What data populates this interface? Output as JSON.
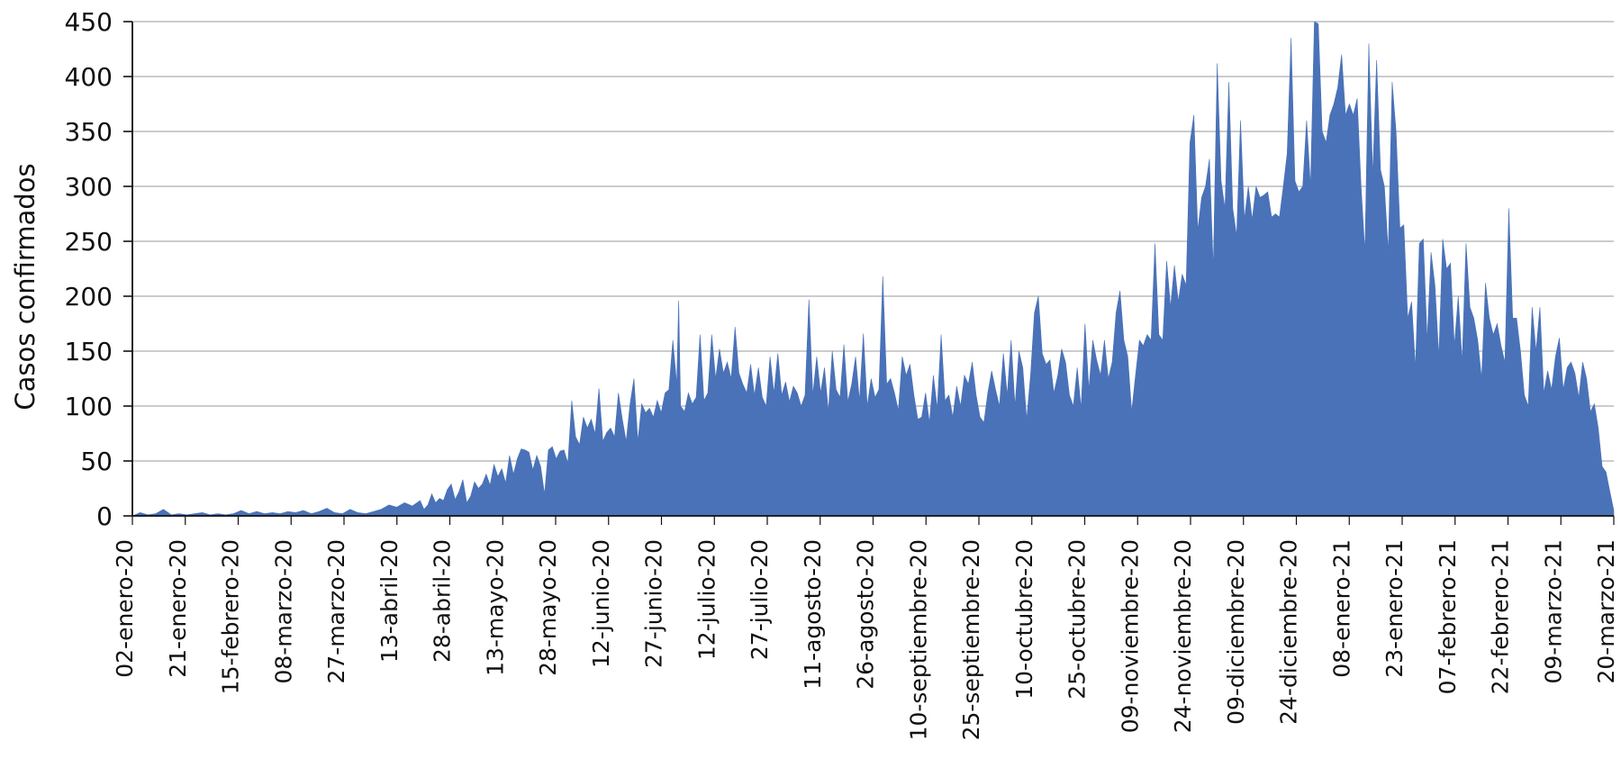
{
  "chart_data": {
    "type": "area",
    "ylabel": "Casos confirmados",
    "xlabel": "",
    "ylim": [
      0,
      450
    ],
    "yticks": [
      0,
      50,
      100,
      150,
      200,
      250,
      300,
      350,
      400,
      450
    ],
    "grid": true,
    "legend": "none",
    "colors": {
      "fill": "#4a72b8",
      "grid": "#bcbcbc",
      "axis": "#111111"
    },
    "x_tick_labels": [
      "02-enero-20",
      "21-enero-20",
      "15-febrero-20",
      "08-marzo-20",
      "27-marzo-20",
      "13-abril-20",
      "28-abril-20",
      "13-mayo-20",
      "28-mayo-20",
      "12-junio-20",
      "27-junio-20",
      "12-julio-20",
      "27-julio-20",
      "11-agosto-20",
      "26-agosto-20",
      "10-septiembre-20",
      "25-septiembre-20",
      "10-octubre-20",
      "25-octubre-20",
      "09-noviembre-20",
      "24-noviembre-20",
      "09-diciembre-20",
      "24-diciembre-20",
      "08-enero-21",
      "23-enero-21",
      "07-febrero-21",
      "22-febrero-21",
      "09-marzo-21",
      "20-marzo-21"
    ],
    "points": [
      [
        0,
        0
      ],
      [
        4,
        3
      ],
      [
        8,
        1
      ],
      [
        12,
        2
      ],
      [
        16,
        6
      ],
      [
        20,
        1
      ],
      [
        24,
        2
      ],
      [
        28,
        1
      ],
      [
        32,
        2
      ],
      [
        36,
        3
      ],
      [
        40,
        1
      ],
      [
        44,
        2
      ],
      [
        48,
        1
      ],
      [
        52,
        2
      ],
      [
        56,
        5
      ],
      [
        60,
        2
      ],
      [
        64,
        4
      ],
      [
        68,
        2
      ],
      [
        72,
        3
      ],
      [
        76,
        2
      ],
      [
        80,
        4
      ],
      [
        84,
        3
      ],
      [
        88,
        5
      ],
      [
        92,
        2
      ],
      [
        96,
        4
      ],
      [
        100,
        7
      ],
      [
        104,
        3
      ],
      [
        108,
        2
      ],
      [
        112,
        6
      ],
      [
        116,
        3
      ],
      [
        120,
        2
      ],
      [
        124,
        4
      ],
      [
        128,
        6
      ],
      [
        132,
        10
      ],
      [
        136,
        8
      ],
      [
        140,
        12
      ],
      [
        144,
        9
      ],
      [
        148,
        14
      ],
      [
        150,
        6
      ],
      [
        152,
        10
      ],
      [
        154,
        20
      ],
      [
        156,
        12
      ],
      [
        158,
        16
      ],
      [
        160,
        14
      ],
      [
        162,
        24
      ],
      [
        164,
        29
      ],
      [
        166,
        15
      ],
      [
        168,
        22
      ],
      [
        170,
        33
      ],
      [
        172,
        12
      ],
      [
        174,
        18
      ],
      [
        176,
        31
      ],
      [
        178,
        25
      ],
      [
        180,
        29
      ],
      [
        182,
        38
      ],
      [
        184,
        28
      ],
      [
        186,
        47
      ],
      [
        188,
        36
      ],
      [
        190,
        43
      ],
      [
        192,
        30
      ],
      [
        194,
        55
      ],
      [
        196,
        38
      ],
      [
        198,
        52
      ],
      [
        200,
        61
      ],
      [
        202,
        60
      ],
      [
        204,
        58
      ],
      [
        206,
        42
      ],
      [
        208,
        55
      ],
      [
        210,
        45
      ],
      [
        212,
        20
      ],
      [
        214,
        60
      ],
      [
        216,
        63
      ],
      [
        218,
        52
      ],
      [
        220,
        59
      ],
      [
        222,
        60
      ],
      [
        224,
        48
      ],
      [
        226,
        105
      ],
      [
        228,
        72
      ],
      [
        230,
        65
      ],
      [
        232,
        90
      ],
      [
        234,
        80
      ],
      [
        236,
        88
      ],
      [
        238,
        75
      ],
      [
        240,
        116
      ],
      [
        242,
        68
      ],
      [
        244,
        76
      ],
      [
        246,
        80
      ],
      [
        248,
        72
      ],
      [
        250,
        112
      ],
      [
        252,
        88
      ],
      [
        254,
        68
      ],
      [
        256,
        102
      ],
      [
        258,
        125
      ],
      [
        260,
        68
      ],
      [
        262,
        102
      ],
      [
        264,
        94
      ],
      [
        266,
        98
      ],
      [
        268,
        90
      ],
      [
        270,
        105
      ],
      [
        272,
        94
      ],
      [
        274,
        112
      ],
      [
        276,
        115
      ],
      [
        278,
        160
      ],
      [
        280,
        120
      ],
      [
        281,
        196
      ],
      [
        282,
        100
      ],
      [
        284,
        95
      ],
      [
        286,
        112
      ],
      [
        288,
        102
      ],
      [
        290,
        108
      ],
      [
        292,
        165
      ],
      [
        294,
        105
      ],
      [
        296,
        112
      ],
      [
        298,
        165
      ],
      [
        300,
        125
      ],
      [
        302,
        152
      ],
      [
        304,
        130
      ],
      [
        306,
        140
      ],
      [
        308,
        125
      ],
      [
        310,
        172
      ],
      [
        312,
        130
      ],
      [
        314,
        120
      ],
      [
        316,
        112
      ],
      [
        318,
        138
      ],
      [
        320,
        110
      ],
      [
        322,
        135
      ],
      [
        324,
        108
      ],
      [
        326,
        100
      ],
      [
        328,
        145
      ],
      [
        330,
        112
      ],
      [
        332,
        148
      ],
      [
        334,
        110
      ],
      [
        336,
        122
      ],
      [
        338,
        104
      ],
      [
        340,
        118
      ],
      [
        342,
        112
      ],
      [
        344,
        100
      ],
      [
        346,
        110
      ],
      [
        348,
        197
      ],
      [
        350,
        110
      ],
      [
        352,
        145
      ],
      [
        354,
        112
      ],
      [
        356,
        135
      ],
      [
        358,
        95
      ],
      [
        360,
        150
      ],
      [
        362,
        115
      ],
      [
        364,
        108
      ],
      [
        366,
        156
      ],
      [
        368,
        104
      ],
      [
        370,
        120
      ],
      [
        372,
        145
      ],
      [
        374,
        105
      ],
      [
        376,
        166
      ],
      [
        378,
        100
      ],
      [
        380,
        125
      ],
      [
        382,
        108
      ],
      [
        384,
        115
      ],
      [
        386,
        218
      ],
      [
        388,
        120
      ],
      [
        390,
        125
      ],
      [
        392,
        112
      ],
      [
        394,
        96
      ],
      [
        396,
        145
      ],
      [
        398,
        128
      ],
      [
        400,
        138
      ],
      [
        402,
        110
      ],
      [
        404,
        88
      ],
      [
        406,
        90
      ],
      [
        408,
        112
      ],
      [
        410,
        85
      ],
      [
        412,
        128
      ],
      [
        414,
        98
      ],
      [
        416,
        165
      ],
      [
        418,
        105
      ],
      [
        420,
        110
      ],
      [
        422,
        90
      ],
      [
        424,
        118
      ],
      [
        426,
        100
      ],
      [
        428,
        128
      ],
      [
        430,
        120
      ],
      [
        432,
        140
      ],
      [
        434,
        110
      ],
      [
        436,
        90
      ],
      [
        438,
        85
      ],
      [
        440,
        112
      ],
      [
        442,
        132
      ],
      [
        444,
        115
      ],
      [
        446,
        100
      ],
      [
        448,
        148
      ],
      [
        450,
        110
      ],
      [
        452,
        160
      ],
      [
        454,
        100
      ],
      [
        456,
        150
      ],
      [
        458,
        135
      ],
      [
        460,
        88
      ],
      [
        462,
        128
      ],
      [
        464,
        185
      ],
      [
        466,
        200
      ],
      [
        468,
        148
      ],
      [
        470,
        138
      ],
      [
        472,
        142
      ],
      [
        474,
        112
      ],
      [
        476,
        128
      ],
      [
        478,
        152
      ],
      [
        480,
        140
      ],
      [
        482,
        110
      ],
      [
        484,
        100
      ],
      [
        486,
        135
      ],
      [
        488,
        98
      ],
      [
        490,
        175
      ],
      [
        492,
        115
      ],
      [
        494,
        160
      ],
      [
        496,
        142
      ],
      [
        498,
        128
      ],
      [
        500,
        160
      ],
      [
        502,
        125
      ],
      [
        504,
        140
      ],
      [
        506,
        185
      ],
      [
        508,
        205
      ],
      [
        510,
        160
      ],
      [
        512,
        145
      ],
      [
        514,
        95
      ],
      [
        516,
        128
      ],
      [
        518,
        160
      ],
      [
        520,
        155
      ],
      [
        522,
        165
      ],
      [
        524,
        160
      ],
      [
        526,
        248
      ],
      [
        528,
        165
      ],
      [
        530,
        160
      ],
      [
        532,
        232
      ],
      [
        534,
        190
      ],
      [
        536,
        228
      ],
      [
        538,
        195
      ],
      [
        540,
        220
      ],
      [
        542,
        210
      ],
      [
        544,
        340
      ],
      [
        546,
        365
      ],
      [
        548,
        260
      ],
      [
        550,
        290
      ],
      [
        552,
        300
      ],
      [
        554,
        325
      ],
      [
        556,
        225
      ],
      [
        558,
        412
      ],
      [
        560,
        305
      ],
      [
        562,
        280
      ],
      [
        564,
        395
      ],
      [
        566,
        280
      ],
      [
        568,
        255
      ],
      [
        570,
        360
      ],
      [
        572,
        270
      ],
      [
        574,
        300
      ],
      [
        576,
        270
      ],
      [
        578,
        300
      ],
      [
        580,
        290
      ],
      [
        582,
        292
      ],
      [
        584,
        295
      ],
      [
        586,
        272
      ],
      [
        588,
        275
      ],
      [
        590,
        272
      ],
      [
        592,
        300
      ],
      [
        594,
        330
      ],
      [
        596,
        435
      ],
      [
        598,
        305
      ],
      [
        600,
        295
      ],
      [
        602,
        300
      ],
      [
        604,
        360
      ],
      [
        606,
        300
      ],
      [
        608,
        450
      ],
      [
        610,
        448
      ],
      [
        612,
        350
      ],
      [
        614,
        340
      ],
      [
        616,
        365
      ],
      [
        618,
        375
      ],
      [
        620,
        390
      ],
      [
        622,
        420
      ],
      [
        624,
        365
      ],
      [
        626,
        375
      ],
      [
        628,
        365
      ],
      [
        630,
        380
      ],
      [
        632,
        300
      ],
      [
        634,
        240
      ],
      [
        636,
        430
      ],
      [
        638,
        310
      ],
      [
        640,
        415
      ],
      [
        642,
        315
      ],
      [
        644,
        300
      ],
      [
        646,
        240
      ],
      [
        648,
        395
      ],
      [
        650,
        350
      ],
      [
        652,
        262
      ],
      [
        654,
        265
      ],
      [
        656,
        180
      ],
      [
        658,
        195
      ],
      [
        660,
        135
      ],
      [
        662,
        248
      ],
      [
        664,
        252
      ],
      [
        666,
        160
      ],
      [
        668,
        240
      ],
      [
        670,
        210
      ],
      [
        672,
        145
      ],
      [
        674,
        252
      ],
      [
        676,
        225
      ],
      [
        678,
        230
      ],
      [
        680,
        155
      ],
      [
        682,
        200
      ],
      [
        684,
        140
      ],
      [
        686,
        248
      ],
      [
        688,
        190
      ],
      [
        690,
        180
      ],
      [
        692,
        160
      ],
      [
        694,
        125
      ],
      [
        696,
        212
      ],
      [
        698,
        180
      ],
      [
        700,
        165
      ],
      [
        702,
        175
      ],
      [
        704,
        155
      ],
      [
        706,
        140
      ],
      [
        708,
        280
      ],
      [
        710,
        180
      ],
      [
        712,
        180
      ],
      [
        714,
        150
      ],
      [
        716,
        110
      ],
      [
        718,
        100
      ],
      [
        720,
        190
      ],
      [
        722,
        150
      ],
      [
        724,
        190
      ],
      [
        726,
        112
      ],
      [
        728,
        132
      ],
      [
        730,
        115
      ],
      [
        732,
        145
      ],
      [
        734,
        162
      ],
      [
        736,
        115
      ],
      [
        738,
        135
      ],
      [
        740,
        140
      ],
      [
        742,
        130
      ],
      [
        744,
        108
      ],
      [
        746,
        140
      ],
      [
        748,
        125
      ],
      [
        750,
        95
      ],
      [
        752,
        102
      ],
      [
        754,
        80
      ],
      [
        756,
        45
      ],
      [
        758,
        40
      ],
      [
        760,
        22
      ],
      [
        762,
        5
      ],
      [
        762,
        0
      ]
    ]
  }
}
